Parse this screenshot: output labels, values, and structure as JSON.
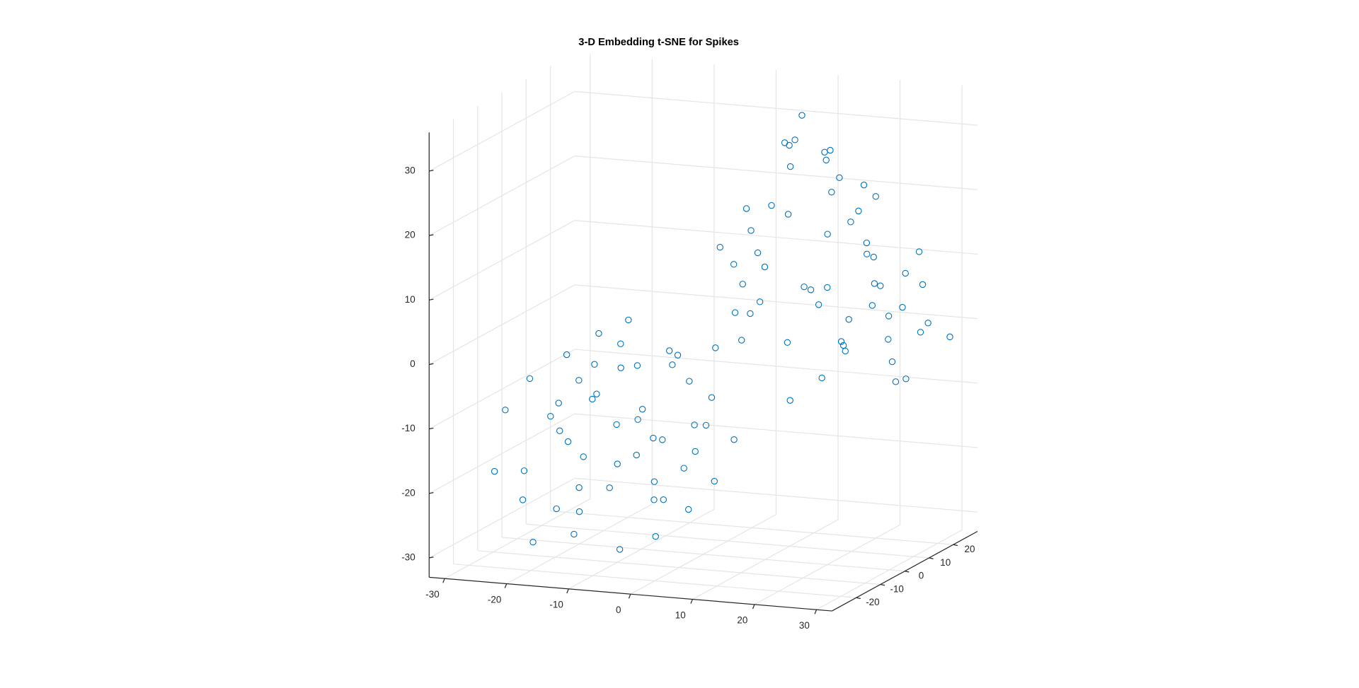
{
  "chart_data": {
    "type": "scatter3",
    "title": "3-D Embedding t-SNE for Spikes",
    "series": [
      {
        "color": "#0072BD",
        "x": [
          -30,
          -28,
          -25,
          -24,
          -22,
          -20,
          -19,
          -18,
          -17,
          -16,
          -15,
          -14,
          -13,
          -12,
          -11,
          -10,
          -9,
          -8,
          -7,
          -6,
          -5,
          -4,
          -3,
          -2,
          -1,
          0,
          1,
          2,
          3,
          -26,
          -23,
          -21,
          -27,
          -18,
          -14,
          -12,
          -9,
          -6,
          -20,
          -16,
          -29,
          -13,
          -8,
          -24,
          -10,
          -3,
          -17,
          -22,
          -5,
          -11,
          0,
          2,
          4,
          1,
          3,
          -2,
          5,
          6,
          5,
          8,
          10,
          12,
          14,
          16,
          18,
          20,
          22,
          24,
          26,
          28,
          30,
          6,
          8,
          10,
          12,
          14,
          16,
          18,
          20,
          22,
          24,
          26,
          28,
          9,
          11,
          13,
          15,
          17,
          19,
          21,
          23,
          25,
          27,
          7,
          12,
          15,
          18,
          20,
          29,
          30,
          10,
          14,
          22,
          16,
          24,
          6,
          19,
          27
        ],
        "y": [
          -5,
          0,
          -10,
          5,
          -3,
          8,
          -12,
          2,
          -6,
          10,
          -15,
          0,
          6,
          -8,
          3,
          -2,
          9,
          -14,
          1,
          -5,
          7,
          -10,
          4,
          -1,
          6,
          -8,
          2,
          -4,
          5,
          -8,
          3,
          -6,
          6,
          12,
          -10,
          10,
          -4,
          12,
          0,
          -4,
          -12,
          -18,
          4,
          10,
          15,
          -12,
          8,
          -14,
          0,
          -6,
          5,
          8,
          6,
          10,
          12,
          12,
          3,
          8,
          5,
          15,
          8,
          20,
          2,
          12,
          18,
          5,
          14,
          22,
          10,
          18,
          25,
          10,
          2,
          16,
          4,
          22,
          8,
          14,
          0,
          20,
          6,
          24,
          12,
          12,
          0,
          18,
          6,
          24,
          10,
          16,
          2,
          14,
          20,
          18,
          10,
          14,
          4,
          20,
          8,
          16,
          22,
          0,
          10,
          16,
          18,
          4,
          22,
          4
        ],
        "z": [
          -12,
          -8,
          -20,
          -5,
          -15,
          -2,
          -25,
          -10,
          -18,
          0,
          -28,
          -14,
          -6,
          -22,
          -12,
          -18,
          -4,
          -30,
          -16,
          -24,
          -8,
          -20,
          -14,
          -26,
          -10,
          -18,
          -22,
          -12,
          -16,
          -25,
          -18,
          -10,
          -15,
          -8,
          -8,
          -18,
          -12,
          -20,
          -28,
          -4,
          -20,
          -20,
          -26,
          -10,
          -6,
          -28,
          -22,
          -30,
          -4,
          0,
          -2,
          3,
          8,
          10,
          15,
          12,
          0,
          5,
          20,
          28,
          30,
          25,
          32,
          22,
          18,
          26,
          12,
          8,
          4,
          0,
          -2,
          10,
          14,
          6,
          0,
          -4,
          -6,
          2,
          10,
          -2,
          16,
          6,
          -6,
          18,
          22,
          14,
          8,
          10,
          -2,
          4,
          20,
          -4,
          12,
          24,
          34,
          28,
          30,
          20,
          6,
          2,
          2,
          -8,
          24,
          -2,
          -8,
          4,
          6,
          10
        ]
      }
    ],
    "xlim": [
      -32.5,
      32.5
    ],
    "ylim": [
      -30,
      30
    ],
    "zlim": [
      -33,
      36
    ],
    "xticks": [
      -30,
      -20,
      -10,
      0,
      10,
      20,
      30
    ],
    "yticks": [
      -20,
      -10,
      0,
      10,
      20
    ],
    "zticks": [
      -30,
      -20,
      -10,
      0,
      10,
      20,
      30
    ],
    "grid": true
  }
}
